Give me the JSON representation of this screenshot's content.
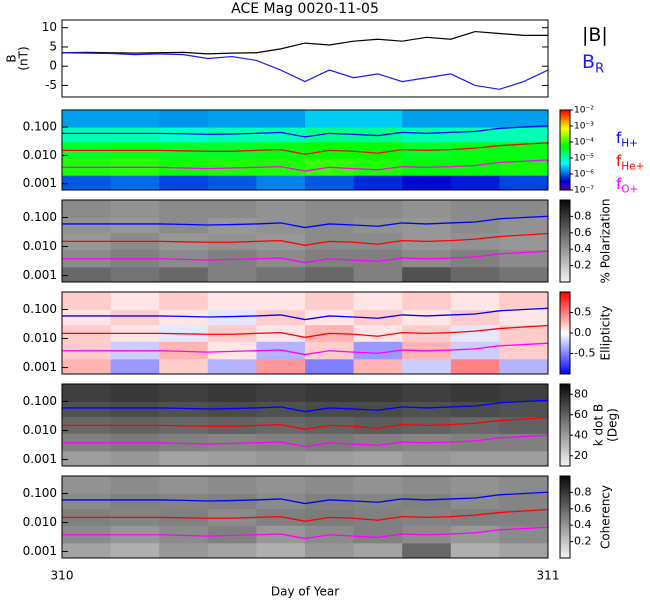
{
  "chart_data": [
    {
      "type": "line",
      "title": "ACE Mag 0020-11-05",
      "ylabel": [
        "B",
        "(nT)"
      ],
      "xlim": [
        310,
        311
      ],
      "ylim": [
        -8,
        12
      ],
      "yticks": [
        10,
        5,
        0,
        -5
      ],
      "x": [
        310,
        310.05,
        310.1,
        310.15,
        310.2,
        310.25,
        310.3,
        310.35,
        310.4,
        310.45,
        310.5,
        310.55,
        310.6,
        310.65,
        310.7,
        310.75,
        310.8,
        310.85,
        310.9,
        310.95,
        311
      ],
      "series": [
        {
          "name": "|B|",
          "color": "#000000",
          "values": [
            3.5,
            3.6,
            3.5,
            3.4,
            3.5,
            3.6,
            3.2,
            3.4,
            3.5,
            4.5,
            6,
            5.5,
            6.5,
            7,
            6.5,
            7.5,
            7,
            9,
            8.5,
            8,
            8
          ]
        },
        {
          "name": "B",
          "name_subscript": "R",
          "color": "#1a1aff",
          "values": [
            3.5,
            3.4,
            3.3,
            3.0,
            3.2,
            3.0,
            2.0,
            2.5,
            1.5,
            -1,
            -4,
            -1,
            -3,
            -2,
            -4,
            -3,
            -2,
            -5,
            -6,
            -4,
            -1
          ]
        }
      ]
    },
    {
      "type": "heatmap",
      "log_y": true,
      "xlim": [
        310,
        311
      ],
      "ylim": [
        0.0006,
        0.4
      ],
      "yticks": [
        0.001,
        {
          "value": 0.01,
          "label": "0.010"
        },
        {
          "value": 0.1,
          "label": "0.100"
        }
      ],
      "colormap": "rainbow",
      "zscale": "log",
      "zlim": [
        1e-07,
        0.01
      ],
      "zticks": [
        {
          "value": 0.01,
          "label": "10⁻²"
        },
        {
          "value": 0.001,
          "label": "10⁻³"
        },
        {
          "value": 0.0001,
          "label": "10⁻⁴"
        },
        {
          "value": 1e-05,
          "label": "10⁻⁵"
        },
        {
          "value": 1e-06,
          "label": "10⁻⁶"
        },
        {
          "value": 1e-07,
          "label": "10⁻⁷"
        }
      ],
      "x_bins": [
        310,
        310.1,
        310.2,
        310.3,
        310.4,
        310.5,
        310.6,
        310.7,
        310.8,
        310.9,
        311
      ],
      "y_bins": [
        0.0006,
        0.002,
        0.008,
        0.03,
        0.1,
        0.4
      ],
      "z": [
        [
          1e-06,
          1.2e-06,
          8e-07,
          1e-06,
          1.5e-06,
          1e-06,
          6e-07,
          4e-07,
          5e-07,
          8e-07
        ],
        [
          8e-05,
          9e-05,
          7e-05,
          8e-05,
          8e-05,
          0.0001,
          8e-05,
          6e-05,
          6e-05,
          7e-05
        ],
        [
          4e-05,
          5e-05,
          4e-05,
          4e-05,
          5e-05,
          6e-05,
          6e-05,
          4e-05,
          5e-05,
          5e-05
        ],
        [
          1e-05,
          1e-05,
          8e-06,
          1e-05,
          1e-05,
          1.5e-05,
          1.5e-05,
          1e-05,
          1e-05,
          1e-05
        ],
        [
          2e-06,
          2e-06,
          1.8e-06,
          2e-06,
          2e-06,
          3e-06,
          3e-06,
          2e-06,
          2e-06,
          2e-06
        ]
      ],
      "x": [
        310,
        310.05,
        310.1,
        310.15,
        310.2,
        310.25,
        310.3,
        310.35,
        310.4,
        310.45,
        310.5,
        310.55,
        310.6,
        310.65,
        310.7,
        310.75,
        310.8,
        310.85,
        310.9,
        310.95,
        311
      ],
      "series": [
        {
          "name": "f",
          "name_subscript": "H+",
          "color": "#0000ff",
          "values": [
            0.06,
            0.06,
            0.06,
            0.06,
            0.06,
            0.058,
            0.055,
            0.057,
            0.06,
            0.065,
            0.045,
            0.06,
            0.055,
            0.05,
            0.065,
            0.06,
            0.065,
            0.07,
            0.09,
            0.1,
            0.11
          ]
        },
        {
          "name": "f",
          "name_subscript": "He+",
          "color": "#ff0000",
          "values": [
            0.015,
            0.015,
            0.015,
            0.015,
            0.015,
            0.0145,
            0.014,
            0.014,
            0.015,
            0.016,
            0.011,
            0.015,
            0.014,
            0.012,
            0.016,
            0.015,
            0.016,
            0.018,
            0.022,
            0.025,
            0.028
          ]
        },
        {
          "name": "f",
          "name_subscript": "O+",
          "color": "#ff00ff",
          "values": [
            0.0038,
            0.0038,
            0.0038,
            0.0038,
            0.0038,
            0.0036,
            0.0034,
            0.0036,
            0.0038,
            0.004,
            0.0028,
            0.0038,
            0.0034,
            0.0031,
            0.004,
            0.0038,
            0.004,
            0.0044,
            0.0056,
            0.0062,
            0.0069
          ]
        }
      ]
    },
    {
      "type": "heatmap",
      "log_y": true,
      "xlim": [
        310,
        311
      ],
      "ylim": [
        0.0006,
        0.4
      ],
      "yticks": [
        0.001,
        {
          "value": 0.01,
          "label": "0.010"
        },
        {
          "value": 0.1,
          "label": "0.100"
        }
      ],
      "colormap": "gray",
      "zlim": [
        0,
        1
      ],
      "zticks": [
        0.8,
        0.6,
        0.4,
        0.2
      ],
      "zlabel": [
        "% Polarization"
      ],
      "x_bins": [
        310,
        310.1,
        310.2,
        310.3,
        310.4,
        310.5,
        310.6,
        310.7,
        310.8,
        310.9,
        311
      ],
      "y_bins": [
        0.0006,
        0.002,
        0.008,
        0.03,
        0.1,
        0.4
      ],
      "z": [
        [
          0.6,
          0.55,
          0.6,
          0.5,
          0.55,
          0.6,
          0.5,
          0.7,
          0.6,
          0.55
        ],
        [
          0.45,
          0.5,
          0.45,
          0.5,
          0.45,
          0.5,
          0.5,
          0.45,
          0.5,
          0.45
        ],
        [
          0.4,
          0.45,
          0.4,
          0.42,
          0.4,
          0.45,
          0.45,
          0.4,
          0.42,
          0.4
        ],
        [
          0.42,
          0.4,
          0.45,
          0.4,
          0.42,
          0.45,
          0.42,
          0.4,
          0.45,
          0.42
        ],
        [
          0.45,
          0.42,
          0.45,
          0.45,
          0.42,
          0.45,
          0.45,
          0.42,
          0.45,
          0.45
        ]
      ]
    },
    {
      "type": "heatmap",
      "log_y": true,
      "xlim": [
        310,
        311
      ],
      "ylim": [
        0.0006,
        0.4
      ],
      "yticks": [
        0.001,
        {
          "value": 0.01,
          "label": "0.010"
        },
        {
          "value": 0.1,
          "label": "0.100"
        }
      ],
      "colormap": "bwr",
      "zlim": [
        -1,
        1
      ],
      "zticks": [
        0.5,
        {
          "value": 0,
          "label": "0.0"
        },
        -0.5
      ],
      "zlabel": [
        "Ellipticity"
      ],
      "x_bins": [
        310,
        310.1,
        310.2,
        310.3,
        310.4,
        310.5,
        310.6,
        310.7,
        310.8,
        310.9,
        311
      ],
      "y_bins": [
        0.0006,
        0.002,
        0.008,
        0.03,
        0.1,
        0.4
      ],
      "z": [
        [
          0.3,
          -0.4,
          0.2,
          -0.3,
          0.4,
          -0.5,
          0.3,
          -0.2,
          0.5,
          -0.3
        ],
        [
          0.2,
          -0.2,
          0.3,
          0.1,
          -0.3,
          0.2,
          -0.4,
          0.3,
          -0.2,
          0.2
        ],
        [
          0.2,
          0.1,
          -0.1,
          0.2,
          0.1,
          0.3,
          0.1,
          0.2,
          -0.1,
          0.2
        ],
        [
          0.1,
          0.2,
          0.1,
          -0.1,
          0.2,
          0.1,
          0.2,
          0.1,
          0.2,
          0.1
        ],
        [
          0.2,
          0.1,
          0.2,
          0.1,
          0.1,
          0.2,
          0.1,
          0.2,
          0.1,
          0.2
        ]
      ]
    },
    {
      "type": "heatmap",
      "log_y": true,
      "xlim": [
        310,
        311
      ],
      "ylim": [
        0.0006,
        0.4
      ],
      "yticks": [
        0.001,
        {
          "value": 0.01,
          "label": "0.010"
        },
        {
          "value": 0.1,
          "label": "0.100"
        }
      ],
      "colormap": "gray",
      "zlim": [
        10,
        90
      ],
      "zticks": [
        80,
        60,
        40,
        20
      ],
      "zlabel": [
        "k dot B",
        "(Deg)"
      ],
      "x_bins": [
        310,
        310.1,
        310.2,
        310.3,
        310.4,
        310.5,
        310.6,
        310.7,
        310.8,
        310.9,
        311
      ],
      "y_bins": [
        0.0006,
        0.002,
        0.008,
        0.03,
        0.1,
        0.4
      ],
      "z": [
        [
          40,
          42,
          38,
          40,
          42,
          40,
          38,
          42,
          40,
          40
        ],
        [
          50,
          52,
          50,
          48,
          50,
          52,
          50,
          48,
          50,
          50
        ],
        [
          58,
          60,
          58,
          60,
          58,
          60,
          62,
          60,
          58,
          60
        ],
        [
          66,
          68,
          66,
          68,
          66,
          68,
          68,
          66,
          68,
          66
        ],
        [
          72,
          74,
          72,
          74,
          72,
          74,
          74,
          72,
          74,
          72
        ]
      ]
    },
    {
      "type": "heatmap",
      "log_y": true,
      "xlim": [
        310,
        311
      ],
      "ylim": [
        0.0006,
        0.4
      ],
      "yticks": [
        0.001,
        {
          "value": 0.01,
          "label": "0.010"
        },
        {
          "value": 0.1,
          "label": "0.100"
        }
      ],
      "colormap": "gray",
      "zlim": [
        0,
        1
      ],
      "zticks": [
        0.8,
        0.6,
        0.4,
        0.2
      ],
      "zlabel": [
        "Coherency"
      ],
      "x_bins": [
        310,
        310.1,
        310.2,
        310.3,
        310.4,
        310.5,
        310.6,
        310.7,
        310.8,
        310.9,
        311
      ],
      "y_bins": [
        0.0006,
        0.002,
        0.008,
        0.03,
        0.1,
        0.4
      ],
      "z": [
        [
          0.35,
          0.3,
          0.4,
          0.35,
          0.3,
          0.4,
          0.35,
          0.6,
          0.3,
          0.35
        ],
        [
          0.45,
          0.4,
          0.45,
          0.5,
          0.4,
          0.45,
          0.5,
          0.45,
          0.4,
          0.45
        ],
        [
          0.5,
          0.48,
          0.5,
          0.45,
          0.5,
          0.52,
          0.5,
          0.48,
          0.5,
          0.5
        ],
        [
          0.45,
          0.5,
          0.48,
          0.5,
          0.45,
          0.5,
          0.48,
          0.5,
          0.45,
          0.48
        ],
        [
          0.42,
          0.45,
          0.42,
          0.45,
          0.42,
          0.45,
          0.42,
          0.45,
          0.42,
          0.45
        ]
      ],
      "xticks": [
        310,
        311
      ],
      "xlabel": "Day of Year"
    }
  ]
}
